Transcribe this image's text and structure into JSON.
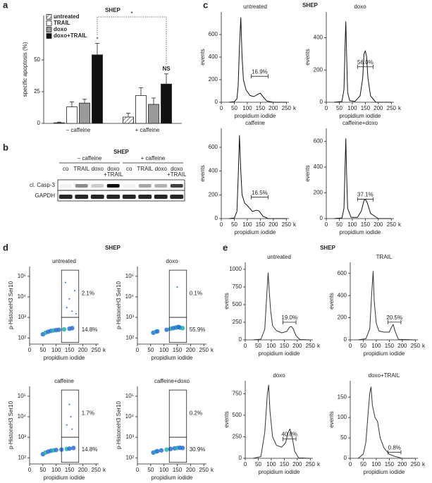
{
  "figure": {
    "labels": [
      "a",
      "b",
      "c",
      "d",
      "e"
    ],
    "headers": [
      "SHEP",
      "SHEP",
      "SHEP"
    ]
  },
  "blot": {
    "title": "SHEP",
    "groups": [
      "– caffeine",
      "+ caffeine"
    ],
    "lanes": [
      [
        "co"
      ],
      [
        "TRAIL"
      ],
      [
        "doxo"
      ],
      [
        "doxo",
        "+TRAIL"
      ],
      [
        "co"
      ],
      [
        "TRAIL"
      ],
      [
        "doxo"
      ],
      [
        "doxo",
        "+TRAIL"
      ]
    ],
    "rows": [
      "cl. Casp-3",
      "GAPDH"
    ]
  },
  "chart_data": [
    {
      "type": "bar",
      "title": "SHEP",
      "ylabel": "specific apoptosis (%)",
      "categories": [
        "– caffeine",
        "+ caffeine"
      ],
      "ylim": [
        0,
        85
      ],
      "yticks": [
        0,
        25,
        50
      ],
      "legend": "top-left",
      "annotations": [
        "*",
        "NS",
        "*"
      ],
      "series": [
        {
          "name": "untreated",
          "color": "#ffffff",
          "pattern": "hatch",
          "values": [
            0.5,
            5
          ],
          "errors": [
            0.5,
            3
          ]
        },
        {
          "name": "TRAIL",
          "color": "#ffffff",
          "values": [
            13,
            22
          ],
          "errors": [
            4,
            6
          ]
        },
        {
          "name": "doxo",
          "color": "#9a9a9a",
          "values": [
            16,
            15
          ],
          "errors": [
            3,
            5
          ]
        },
        {
          "name": "doxo+TRAIL",
          "color": "#111111",
          "values": [
            54,
            31
          ],
          "errors": [
            9,
            8
          ]
        }
      ]
    },
    {
      "type": "line",
      "title": "untreated",
      "xlabel": "propidium iodide",
      "ylabel": "events",
      "xunit": "k",
      "color": "#111111",
      "xlim": [
        0,
        260
      ],
      "xticks": [
        0,
        50,
        100,
        150,
        200,
        250
      ],
      "ylim": [
        0,
        800
      ],
      "yticks": [
        0,
        200,
        400,
        600
      ],
      "x": [
        30,
        50,
        60,
        65,
        70,
        75,
        80,
        85,
        95,
        110,
        125,
        140,
        150,
        160,
        175,
        200,
        250
      ],
      "values": [
        0,
        5,
        30,
        150,
        500,
        750,
        400,
        200,
        110,
        60,
        50,
        70,
        80,
        50,
        10,
        0,
        0
      ],
      "gate": [
        115,
        180
      ],
      "gate_y": 230,
      "gate_label": "16.9%"
    },
    {
      "type": "line",
      "title": "doxo",
      "xlabel": "propidium iodide",
      "ylabel": "events",
      "xunit": "k",
      "color": "#111111",
      "xlim": [
        0,
        260
      ],
      "xticks": [
        0,
        50,
        100,
        150,
        200,
        250
      ],
      "ylim": [
        0,
        560
      ],
      "yticks": [
        0,
        200,
        400
      ],
      "x": [
        30,
        60,
        68,
        72,
        75,
        78,
        82,
        90,
        110,
        130,
        140,
        145,
        150,
        155,
        160,
        170,
        190,
        250
      ],
      "values": [
        0,
        5,
        80,
        350,
        500,
        300,
        60,
        10,
        5,
        40,
        150,
        300,
        320,
        280,
        150,
        40,
        0,
        0
      ],
      "gate": [
        120,
        180
      ],
      "gate_y": 220,
      "gate_label": "56.0%"
    },
    {
      "type": "line",
      "title": "caffeine",
      "xlabel": "propidium iodide",
      "ylabel": "events",
      "xunit": "k",
      "color": "#111111",
      "xlim": [
        0,
        260
      ],
      "xticks": [
        0,
        50,
        100,
        150,
        200,
        250
      ],
      "ylim": [
        0,
        760
      ],
      "yticks": [
        0,
        200,
        400,
        600
      ],
      "x": [
        30,
        50,
        60,
        65,
        70,
        75,
        80,
        90,
        100,
        120,
        135,
        145,
        160,
        180,
        250
      ],
      "values": [
        0,
        5,
        60,
        350,
        700,
        400,
        200,
        130,
        110,
        60,
        70,
        65,
        20,
        0,
        0
      ],
      "gate": [
        115,
        180
      ],
      "gate_y": 180,
      "gate_label": "16.5%"
    },
    {
      "type": "line",
      "title": "caffeine+doxo",
      "xlabel": "propidium iodide",
      "ylabel": "events",
      "xunit": "k",
      "color": "#111111",
      "xlim": [
        0,
        260
      ],
      "xticks": [
        0,
        50,
        100,
        150,
        200,
        250
      ],
      "ylim": [
        0,
        700
      ],
      "yticks": [
        0,
        200,
        400,
        600
      ],
      "x": [
        30,
        60,
        68,
        72,
        75,
        78,
        82,
        95,
        120,
        135,
        145,
        150,
        158,
        170,
        200,
        250
      ],
      "values": [
        0,
        5,
        80,
        400,
        620,
        350,
        80,
        10,
        10,
        60,
        140,
        150,
        120,
        40,
        0,
        0
      ],
      "gate": [
        120,
        180
      ],
      "gate_y": 150,
      "gate_label": "37.1%"
    },
    {
      "type": "scatter",
      "title": "untreated",
      "xlabel": "propidium iodide",
      "ylabel": "p-HistoneH3 Ser10",
      "xunit": "k",
      "color": "#2a6fd6",
      "ylog": true,
      "xlim": [
        0,
        260
      ],
      "xticks": [
        0,
        50,
        100,
        150,
        200,
        250
      ],
      "ylim": [
        50,
        300000
      ],
      "yticks": [
        {
          "value": 100,
          "label": "10²"
        },
        {
          "value": 1000,
          "label": "10³"
        },
        {
          "value": 10000,
          "label": "10⁴"
        },
        {
          "value": 100000,
          "label": "10⁵"
        }
      ],
      "x": [
        50,
        60,
        70,
        80,
        90,
        100,
        110,
        130,
        150,
        160,
        140,
        150,
        160,
        170,
        135,
        175
      ],
      "values": [
        150,
        180,
        200,
        220,
        230,
        240,
        250,
        260,
        280,
        300,
        3000,
        8000,
        2000,
        20000,
        50000,
        1500
      ],
      "gates": [
        [
          120,
          185,
          1000,
          200000
        ],
        [
          120,
          185,
          60,
          1000
        ]
      ],
      "gate_labels": [
        "2.1%",
        "14.8%"
      ]
    },
    {
      "type": "scatter",
      "title": "doxo",
      "xlabel": "propidium iodide",
      "ylabel": "p-HistoneH3 Ser10",
      "xunit": "k",
      "color": "#2a6fd6",
      "ylog": true,
      "xlim": [
        0,
        260
      ],
      "xticks": [
        0,
        50,
        100,
        150,
        200,
        250
      ],
      "ylim": [
        50,
        300000
      ],
      "yticks": [
        {
          "value": 100,
          "label": "10²"
        },
        {
          "value": 1000,
          "label": "10³"
        },
        {
          "value": 10000,
          "label": "10⁴"
        },
        {
          "value": 100000,
          "label": "10⁵"
        }
      ],
      "x": [
        60,
        70,
        75,
        110,
        125,
        135,
        145,
        150,
        155,
        160,
        170,
        150
      ],
      "values": [
        180,
        200,
        210,
        250,
        280,
        300,
        320,
        330,
        340,
        320,
        300,
        30000
      ],
      "gates": [
        [
          120,
          185,
          1000,
          200000
        ],
        [
          120,
          185,
          60,
          1000
        ]
      ],
      "gate_labels": [
        "0.1%",
        "55.9%"
      ]
    },
    {
      "type": "scatter",
      "title": "caffeine",
      "xlabel": "propidium iodide",
      "ylabel": "p-HistoneH3 Ser10",
      "xunit": "k",
      "color": "#2a6fd6",
      "ylog": true,
      "xlim": [
        0,
        260
      ],
      "xticks": [
        0,
        50,
        100,
        150,
        200,
        250
      ],
      "ylim": [
        50,
        300000
      ],
      "yticks": [
        {
          "value": 100,
          "label": "10²"
        },
        {
          "value": 1000,
          "label": "10³"
        },
        {
          "value": 10000,
          "label": "10⁴"
        },
        {
          "value": 100000,
          "label": "10⁵"
        }
      ],
      "x": [
        50,
        60,
        70,
        80,
        90,
        100,
        120,
        140,
        150,
        165,
        140,
        155,
        160,
        150
      ],
      "values": [
        150,
        180,
        200,
        220,
        230,
        240,
        250,
        270,
        280,
        300,
        4000,
        10000,
        2500,
        40000
      ],
      "gates": [
        [
          120,
          185,
          1000,
          200000
        ],
        [
          120,
          185,
          60,
          1000
        ]
      ],
      "gate_labels": [
        "1.7%",
        "14.8%"
      ]
    },
    {
      "type": "scatter",
      "title": "caffeine+doxo",
      "xlabel": "propidium iodide",
      "ylabel": "p-HistoneH3 Ser10",
      "xunit": "k",
      "color": "#2a6fd6",
      "ylog": true,
      "xlim": [
        0,
        260
      ],
      "xticks": [
        0,
        50,
        100,
        150,
        200,
        250
      ],
      "ylim": [
        50,
        300000
      ],
      "yticks": [
        {
          "value": 100,
          "label": "10²"
        },
        {
          "value": 1000,
          "label": "10³"
        },
        {
          "value": 10000,
          "label": "10⁴"
        },
        {
          "value": 100000,
          "label": "10⁵"
        }
      ],
      "x": [
        60,
        70,
        75,
        90,
        110,
        125,
        140,
        150,
        160,
        170
      ],
      "values": [
        180,
        200,
        210,
        230,
        250,
        270,
        290,
        300,
        310,
        300
      ],
      "gates": [
        [
          120,
          185,
          1000,
          200000
        ],
        [
          120,
          185,
          60,
          1000
        ]
      ],
      "gate_labels": [
        "0.2%",
        "30.9%"
      ]
    },
    {
      "type": "line",
      "title": "untreated",
      "xlabel": "propidium iodide",
      "ylabel": "events",
      "xunit": "k",
      "color": "#333333",
      "xlim": [
        0,
        260
      ],
      "xticks": [
        0,
        50,
        100,
        150,
        200,
        250
      ],
      "ylim": [
        0,
        1100
      ],
      "yticks": [
        0,
        250,
        500,
        750,
        1000
      ],
      "x": [
        30,
        60,
        75,
        82,
        88,
        92,
        98,
        105,
        120,
        140,
        160,
        170,
        178,
        185,
        195,
        210,
        250
      ],
      "values": [
        0,
        10,
        150,
        600,
        950,
        700,
        400,
        200,
        130,
        100,
        120,
        180,
        190,
        150,
        60,
        5,
        0
      ],
      "gate": [
        145,
        195
      ],
      "gate_y": 250,
      "gate_label": "19.0%"
    },
    {
      "type": "line",
      "title": "TRAIL",
      "xlabel": "propidium iodide",
      "ylabel": "events",
      "xunit": "k",
      "color": "#333333",
      "xlim": [
        0,
        260
      ],
      "xticks": [
        0,
        50,
        100,
        150,
        200,
        250
      ],
      "ylim": [
        0,
        700
      ],
      "yticks": [
        0,
        200,
        400,
        600
      ],
      "x": [
        30,
        60,
        75,
        82,
        88,
        92,
        100,
        110,
        130,
        150,
        160,
        165,
        172,
        185,
        250
      ],
      "values": [
        0,
        10,
        100,
        400,
        620,
        350,
        150,
        80,
        70,
        70,
        120,
        140,
        80,
        5,
        0
      ],
      "gate": [
        145,
        195
      ],
      "gate_y": 160,
      "gate_label": "20.5%"
    },
    {
      "type": "line",
      "title": "doxo",
      "xlabel": "propidium iodide",
      "ylabel": "events",
      "xunit": "k",
      "color": "#333333",
      "xlim": [
        0,
        260
      ],
      "xticks": [
        0,
        50,
        100,
        150,
        200,
        250
      ],
      "ylim": [
        0,
        900
      ],
      "yticks": [
        0,
        250,
        500,
        750
      ],
      "x": [
        30,
        60,
        75,
        85,
        90,
        95,
        105,
        120,
        140,
        155,
        165,
        172,
        180,
        190,
        205,
        250
      ],
      "values": [
        0,
        20,
        300,
        750,
        850,
        550,
        250,
        150,
        130,
        180,
        300,
        340,
        250,
        80,
        5,
        0
      ],
      "gate": [
        145,
        195
      ],
      "gate_y": 225,
      "gate_label": "40.8%"
    },
    {
      "type": "line",
      "title": "doxo+TRAIL",
      "xlabel": "propidium iodide",
      "ylabel": "events",
      "xunit": "k",
      "color": "#333333",
      "xlim": [
        0,
        260
      ],
      "xticks": [
        0,
        50,
        100,
        150,
        200,
        250
      ],
      "ylim": [
        0,
        190
      ],
      "yticks": [
        0,
        50,
        100,
        150
      ],
      "x": [
        30,
        50,
        60,
        70,
        75,
        80,
        85,
        95,
        105,
        115,
        130,
        150,
        170,
        200,
        250
      ],
      "values": [
        0,
        10,
        40,
        120,
        160,
        175,
        130,
        100,
        90,
        50,
        25,
        10,
        5,
        0,
        0
      ],
      "gate": [
        145,
        195
      ],
      "gate_y": 15,
      "gate_label": "0.8%"
    }
  ]
}
